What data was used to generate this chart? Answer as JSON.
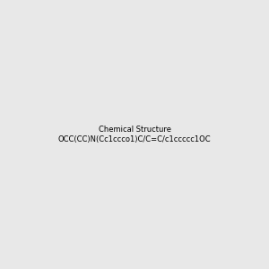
{
  "smiles": "OCC(CC)N(Cc1ccco1)C/C=C/c1ccccc1OC",
  "image_size": 300,
  "background_color": "#e8e8e8",
  "title": ""
}
